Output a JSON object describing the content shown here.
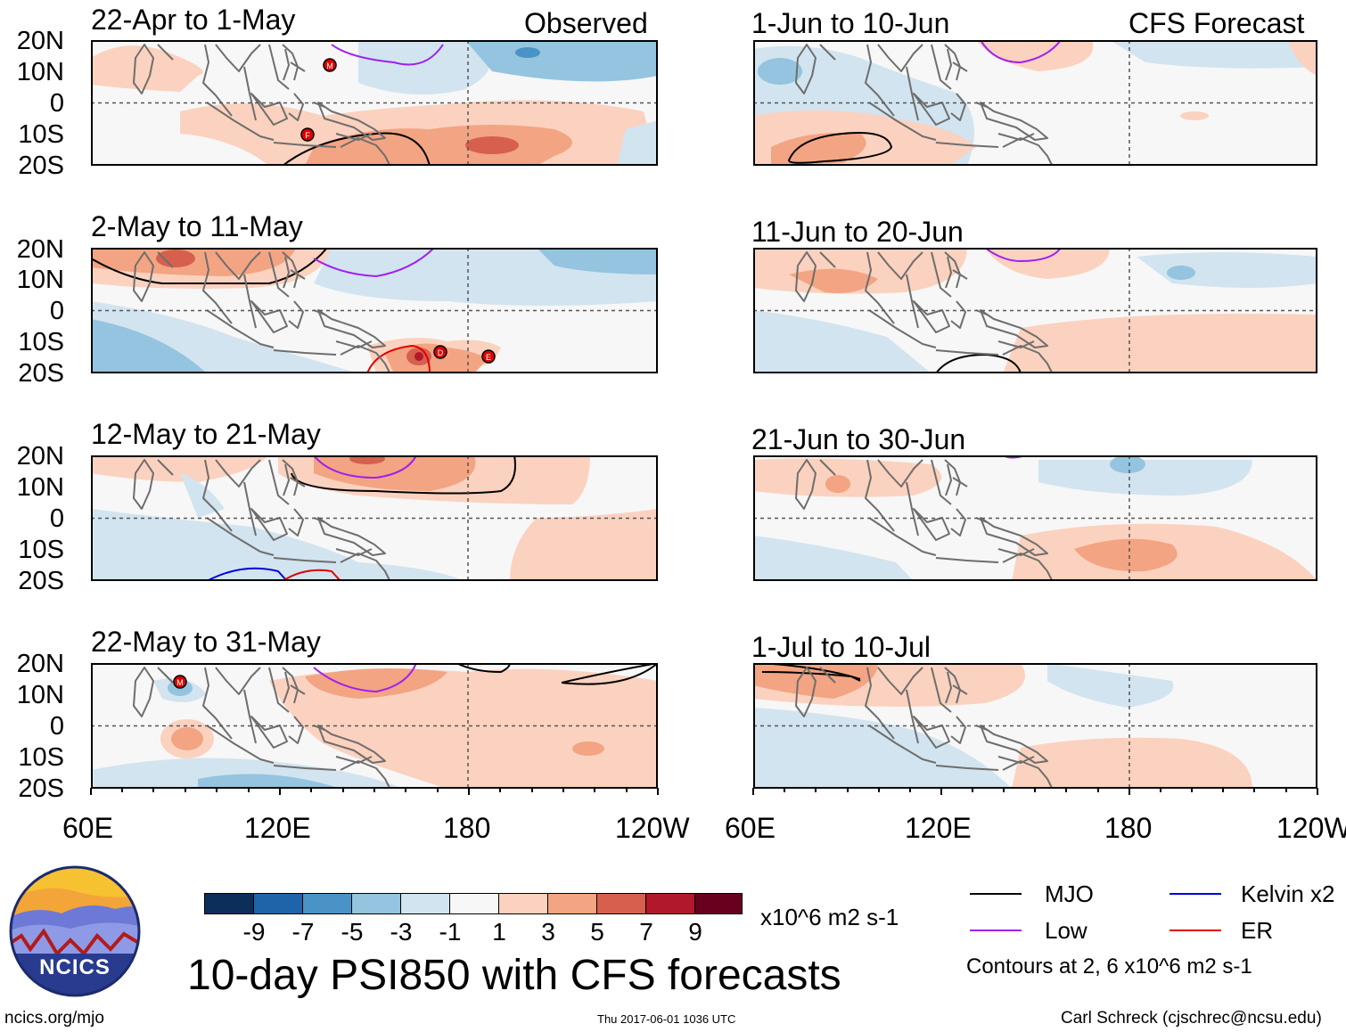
{
  "left_header": "Observed",
  "right_header": "CFS Forecast",
  "panels_left": [
    {
      "title": "22-Apr to 1-May"
    },
    {
      "title": "2-May to 11-May"
    },
    {
      "title": "12-May to 21-May"
    },
    {
      "title": "22-May to 31-May"
    }
  ],
  "panels_right": [
    {
      "title": "1-Jun to 10-Jun"
    },
    {
      "title": "11-Jun to 20-Jun"
    },
    {
      "title": "21-Jun to 30-Jun"
    },
    {
      "title": "1-Jul to 10-Jul"
    }
  ],
  "lat_labels": [
    "20N",
    "10N",
    "0",
    "10S",
    "20S"
  ],
  "lon_labels": [
    "60E",
    "120E",
    "180",
    "120W"
  ],
  "storm_markers": [
    {
      "panel": 0,
      "letter": "M"
    },
    {
      "panel": 0,
      "letter": "F"
    },
    {
      "panel": 1,
      "letter": "D"
    },
    {
      "panel": 1,
      "letter": "E"
    },
    {
      "panel": 3,
      "letter": "M"
    }
  ],
  "colorbar": {
    "labels": [
      "-9",
      "-7",
      "-5",
      "-3",
      "-1",
      "1",
      "3",
      "5",
      "7",
      "9"
    ],
    "colors": [
      "#0b2e5a",
      "#1f64a8",
      "#4a93c6",
      "#94c4df",
      "#d2e4ef",
      "#f7f7f7",
      "#fbd2bf",
      "#f3a482",
      "#d6604d",
      "#b2182b",
      "#67001f"
    ],
    "units": "x10^6 m2 s-1"
  },
  "main_title": "10-day PSI850 with CFS forecasts",
  "legend": {
    "items": [
      {
        "label": "MJO",
        "color": "#000000"
      },
      {
        "label": "Low",
        "color": "#a020f0"
      },
      {
        "label": "Kelvin x2",
        "color": "#0000e0"
      },
      {
        "label": "ER",
        "color": "#e00000"
      }
    ],
    "contours_note": "Contours at 2, 6 x10^6 m2 s-1"
  },
  "logo_text": "NCICS",
  "footer": {
    "left": "ncics.org/mjo",
    "center": "Thu 2017-06-01 1036 UTC",
    "right": "Carl Schreck (cjschrec@ncsu.edu)"
  }
}
